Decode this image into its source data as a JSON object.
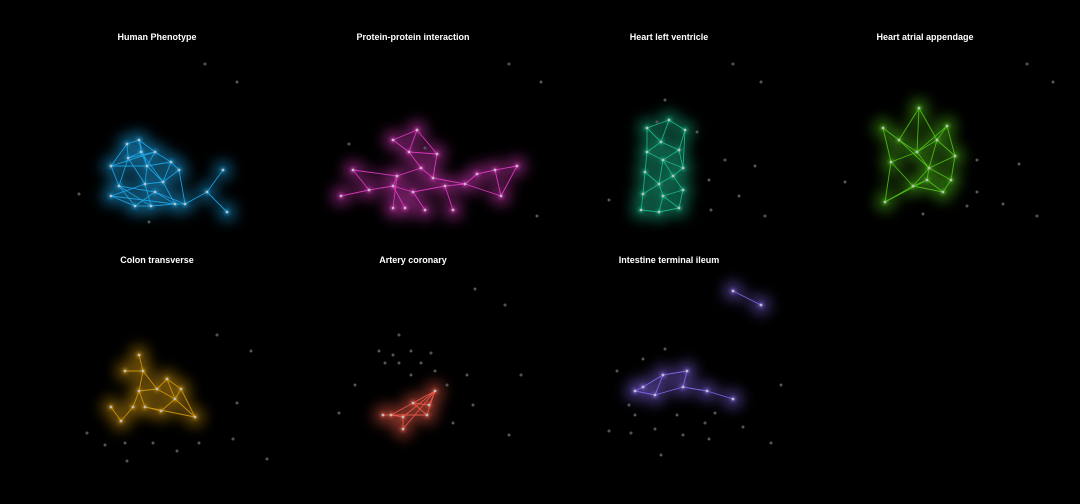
{
  "figure": {
    "background": "#000000",
    "node_color_inactive": "#555555"
  },
  "panels": [
    {
      "title": "Human Phenotype",
      "color": "#1fa6e8",
      "active_nodes": [
        [
          -0.75,
          0.65
        ],
        [
          -0.45,
          0.75
        ],
        [
          -0.4,
          0.45
        ],
        [
          -0.72,
          0.3
        ],
        [
          -0.05,
          0.45
        ],
        [
          -1.15,
          0.1
        ],
        [
          -0.25,
          0.1
        ],
        [
          0.35,
          0.2
        ],
        [
          0.55,
          0.0
        ],
        [
          0.15,
          -0.3
        ],
        [
          -0.3,
          -0.35
        ],
        [
          -1.15,
          -0.65
        ],
        [
          0.45,
          -0.85
        ],
        [
          -0.15,
          -0.9
        ],
        [
          -0.55,
          -0.9
        ],
        [
          -0.95,
          -0.4
        ],
        [
          -0.05,
          -0.55
        ],
        [
          0.7,
          -0.85
        ],
        [
          1.25,
          -0.55
        ],
        [
          1.65,
          0.0
        ],
        [
          1.75,
          -1.05
        ]
      ],
      "active_edges": [
        [
          0,
          1
        ],
        [
          1,
          2
        ],
        [
          2,
          3
        ],
        [
          3,
          4
        ],
        [
          4,
          5
        ],
        [
          5,
          6
        ],
        [
          6,
          7
        ],
        [
          7,
          8
        ],
        [
          8,
          9
        ],
        [
          9,
          10
        ],
        [
          10,
          11
        ],
        [
          11,
          12
        ],
        [
          12,
          13
        ],
        [
          13,
          14
        ],
        [
          14,
          15
        ],
        [
          15,
          16
        ],
        [
          16,
          17
        ],
        [
          0,
          3
        ],
        [
          0,
          5
        ],
        [
          1,
          4
        ],
        [
          2,
          6
        ],
        [
          4,
          6
        ],
        [
          4,
          7
        ],
        [
          6,
          9
        ],
        [
          6,
          10
        ],
        [
          7,
          9
        ],
        [
          9,
          12
        ],
        [
          10,
          13
        ],
        [
          11,
          14
        ],
        [
          14,
          16
        ],
        [
          16,
          12
        ],
        [
          5,
          15
        ],
        [
          3,
          10
        ],
        [
          2,
          9
        ],
        [
          15,
          13
        ],
        [
          8,
          17
        ],
        [
          12,
          17
        ],
        [
          17,
          18
        ],
        [
          18,
          19
        ],
        [
          18,
          20
        ],
        [
          1,
          6
        ],
        [
          3,
          15
        ]
      ],
      "inactive_nodes": [
        [
          1.2,
          2.65
        ],
        [
          2.0,
          2.2
        ],
        [
          -1.95,
          -0.6
        ],
        [
          -0.2,
          -1.3
        ]
      ]
    },
    {
      "title": "Protein-protein interaction",
      "color": "#e63cc8",
      "active_nodes": [
        [
          0.1,
          1.0
        ],
        [
          -0.5,
          0.75
        ],
        [
          -0.1,
          0.45
        ],
        [
          0.6,
          0.4
        ],
        [
          -0.4,
          -0.15
        ],
        [
          0.2,
          0.05
        ],
        [
          0.5,
          -0.2
        ],
        [
          -1.5,
          0.0
        ],
        [
          -1.1,
          -0.5
        ],
        [
          -0.5,
          -0.4
        ],
        [
          0.0,
          -0.55
        ],
        [
          0.8,
          -0.4
        ],
        [
          1.3,
          -0.35
        ],
        [
          1.6,
          -0.1
        ],
        [
          2.05,
          0.0
        ],
        [
          2.6,
          0.1
        ],
        [
          2.2,
          -0.65
        ],
        [
          1.0,
          -1.0
        ],
        [
          -1.8,
          -0.65
        ],
        [
          0.3,
          -1.0
        ],
        [
          -0.2,
          -0.95
        ],
        [
          -0.5,
          -0.95
        ]
      ],
      "active_edges": [
        [
          0,
          1
        ],
        [
          0,
          2
        ],
        [
          1,
          2
        ],
        [
          0,
          3
        ],
        [
          2,
          3
        ],
        [
          2,
          5
        ],
        [
          4,
          5
        ],
        [
          5,
          6
        ],
        [
          7,
          8
        ],
        [
          8,
          9
        ],
        [
          9,
          10
        ],
        [
          10,
          11
        ],
        [
          11,
          12
        ],
        [
          12,
          13
        ],
        [
          13,
          14
        ],
        [
          14,
          15
        ],
        [
          15,
          16
        ],
        [
          14,
          16
        ],
        [
          12,
          16
        ],
        [
          17,
          11
        ],
        [
          18,
          8
        ],
        [
          19,
          10
        ],
        [
          20,
          9
        ],
        [
          21,
          4
        ],
        [
          7,
          4
        ],
        [
          6,
          12
        ],
        [
          4,
          9
        ],
        [
          3,
          6
        ]
      ],
      "inactive_nodes": [
        [
          2.4,
          2.65
        ],
        [
          3.2,
          2.2
        ],
        [
          3.1,
          -1.15
        ],
        [
          -1.6,
          0.65
        ],
        [
          0.3,
          0.55
        ]
      ]
    },
    {
      "title": "Heart left ventricle",
      "color": "#1bbd8e",
      "active_nodes": [
        [
          -0.55,
          1.05
        ],
        [
          0.0,
          1.25
        ],
        [
          0.4,
          1.0
        ],
        [
          -0.2,
          0.7
        ],
        [
          0.25,
          0.5
        ],
        [
          -0.55,
          0.45
        ],
        [
          -0.15,
          0.25
        ],
        [
          0.35,
          0.05
        ],
        [
          -0.6,
          -0.05
        ],
        [
          0.1,
          -0.15
        ],
        [
          -0.25,
          -0.35
        ],
        [
          0.35,
          -0.5
        ],
        [
          -0.65,
          -0.6
        ],
        [
          -0.15,
          -0.65
        ],
        [
          0.25,
          -0.95
        ],
        [
          -0.7,
          -1.0
        ],
        [
          -0.25,
          -1.05
        ]
      ],
      "active_edges": [
        [
          0,
          1
        ],
        [
          1,
          2
        ],
        [
          0,
          3
        ],
        [
          1,
          3
        ],
        [
          2,
          4
        ],
        [
          3,
          4
        ],
        [
          3,
          5
        ],
        [
          4,
          6
        ],
        [
          5,
          6
        ],
        [
          6,
          7
        ],
        [
          5,
          8
        ],
        [
          6,
          9
        ],
        [
          7,
          9
        ],
        [
          8,
          10
        ],
        [
          9,
          10
        ],
        [
          9,
          11
        ],
        [
          10,
          12
        ],
        [
          10,
          13
        ],
        [
          11,
          13
        ],
        [
          12,
          15
        ],
        [
          13,
          14
        ],
        [
          13,
          16
        ],
        [
          15,
          16
        ],
        [
          14,
          16
        ],
        [
          4,
          7
        ],
        [
          2,
          7
        ],
        [
          8,
          12
        ],
        [
          0,
          5
        ],
        [
          11,
          14
        ],
        [
          6,
          10
        ]
      ],
      "inactive_nodes": [
        [
          -0.1,
          1.75
        ],
        [
          1.4,
          0.25
        ],
        [
          2.15,
          0.1
        ],
        [
          1.0,
          -0.25
        ],
        [
          1.75,
          -0.65
        ],
        [
          1.05,
          -1.0
        ],
        [
          -1.5,
          -0.75
        ],
        [
          2.4,
          -1.15
        ],
        [
          -0.3,
          1.2
        ],
        [
          0.7,
          0.95
        ],
        [
          1.6,
          2.65
        ],
        [
          2.3,
          2.2
        ]
      ]
    },
    {
      "title": "Heart atrial appendage",
      "color": "#52c41a",
      "active_nodes": [
        [
          -1.05,
          1.05
        ],
        [
          -0.15,
          1.55
        ],
        [
          0.55,
          1.1
        ],
        [
          -0.65,
          0.75
        ],
        [
          0.3,
          0.75
        ],
        [
          -0.2,
          0.45
        ],
        [
          0.75,
          0.35
        ],
        [
          -0.85,
          0.2
        ],
        [
          0.1,
          0.05
        ],
        [
          0.65,
          -0.25
        ],
        [
          -0.3,
          -0.4
        ],
        [
          -1.0,
          -0.8
        ],
        [
          0.45,
          -0.55
        ],
        [
          0.05,
          -0.25
        ]
      ],
      "active_edges": [
        [
          0,
          3
        ],
        [
          1,
          3
        ],
        [
          1,
          4
        ],
        [
          2,
          4
        ],
        [
          3,
          5
        ],
        [
          4,
          5
        ],
        [
          4,
          6
        ],
        [
          5,
          7
        ],
        [
          5,
          8
        ],
        [
          6,
          8
        ],
        [
          7,
          10
        ],
        [
          8,
          10
        ],
        [
          8,
          9
        ],
        [
          9,
          12
        ],
        [
          10,
          11
        ],
        [
          10,
          13
        ],
        [
          12,
          13
        ],
        [
          2,
          6
        ],
        [
          0,
          7
        ],
        [
          11,
          7
        ],
        [
          6,
          9
        ],
        [
          3,
          8
        ],
        [
          1,
          5
        ],
        [
          4,
          8
        ],
        [
          13,
          8
        ],
        [
          11,
          13
        ],
        [
          12,
          10
        ],
        [
          2,
          5
        ]
      ],
      "inactive_nodes": [
        [
          1.3,
          0.25
        ],
        [
          2.35,
          0.15
        ],
        [
          1.3,
          -0.55
        ],
        [
          1.95,
          -0.85
        ],
        [
          1.05,
          -0.9
        ],
        [
          -2.0,
          -0.3
        ],
        [
          -0.05,
          -1.1
        ],
        [
          2.8,
          -1.15
        ],
        [
          2.55,
          2.65
        ],
        [
          3.2,
          2.2
        ]
      ]
    },
    {
      "title": "Colon transverse",
      "color": "#d49a0e",
      "active_nodes": [
        [
          -0.35,
          0.55
        ],
        [
          -0.45,
          0.05
        ],
        [
          -0.3,
          -0.35
        ],
        [
          -0.6,
          -0.35
        ],
        [
          0.0,
          0.1
        ],
        [
          0.25,
          0.35
        ],
        [
          0.6,
          0.1
        ],
        [
          0.45,
          -0.15
        ],
        [
          0.1,
          -0.45
        ],
        [
          -0.8,
          0.55
        ],
        [
          -0.45,
          0.95
        ],
        [
          0.95,
          -0.6
        ],
        [
          -0.9,
          -0.7
        ],
        [
          -1.15,
          -0.35
        ]
      ],
      "active_edges": [
        [
          0,
          1
        ],
        [
          1,
          2
        ],
        [
          1,
          3
        ],
        [
          0,
          4
        ],
        [
          4,
          5
        ],
        [
          5,
          6
        ],
        [
          6,
          7
        ],
        [
          4,
          7
        ],
        [
          7,
          8
        ],
        [
          8,
          2
        ],
        [
          3,
          12
        ],
        [
          12,
          13
        ],
        [
          0,
          9
        ],
        [
          0,
          10
        ],
        [
          7,
          11
        ],
        [
          6,
          11
        ],
        [
          2,
          11
        ],
        [
          1,
          4
        ],
        [
          5,
          7
        ]
      ],
      "inactive_nodes": [
        [
          -1.75,
          -1.0
        ],
        [
          -1.3,
          -1.3
        ],
        [
          -0.8,
          -1.25
        ],
        [
          -0.1,
          -1.25
        ],
        [
          0.5,
          -1.45
        ],
        [
          1.05,
          -1.25
        ],
        [
          -0.75,
          -1.7
        ],
        [
          2.0,
          -0.25
        ],
        [
          1.9,
          -1.15
        ],
        [
          2.75,
          -1.65
        ],
        [
          1.5,
          1.45
        ],
        [
          2.35,
          1.05
        ]
      ]
    },
    {
      "title": "Artery coronary",
      "color": "#ef5b4a",
      "active_nodes": [
        [
          0.55,
          0.05
        ],
        [
          0.0,
          -0.25
        ],
        [
          -0.55,
          -0.55
        ],
        [
          0.35,
          -0.55
        ],
        [
          -0.75,
          -0.55
        ],
        [
          -0.25,
          -0.6
        ],
        [
          0.4,
          -0.3
        ],
        [
          -0.25,
          -0.9
        ]
      ],
      "active_edges": [
        [
          0,
          1
        ],
        [
          1,
          2
        ],
        [
          0,
          3
        ],
        [
          3,
          2
        ],
        [
          2,
          4
        ],
        [
          0,
          5
        ],
        [
          1,
          6
        ],
        [
          6,
          0
        ],
        [
          7,
          0
        ],
        [
          7,
          5
        ],
        [
          5,
          2
        ],
        [
          1,
          3
        ]
      ],
      "inactive_nodes": [
        [
          -0.35,
          1.45
        ],
        [
          -0.85,
          1.05
        ],
        [
          -0.5,
          0.95
        ],
        [
          -0.05,
          1.05
        ],
        [
          0.45,
          1.0
        ],
        [
          -0.7,
          0.75
        ],
        [
          -0.35,
          0.75
        ],
        [
          0.2,
          0.75
        ],
        [
          0.55,
          0.55
        ],
        [
          -1.45,
          0.2
        ],
        [
          -0.05,
          0.45
        ],
        [
          0.85,
          0.2
        ],
        [
          1.35,
          0.45
        ],
        [
          1.5,
          -0.3
        ],
        [
          1.0,
          -0.75
        ],
        [
          2.7,
          0.45
        ],
        [
          2.4,
          -1.05
        ],
        [
          -1.85,
          -0.5
        ],
        [
          1.55,
          2.6
        ],
        [
          2.3,
          2.2
        ]
      ]
    },
    {
      "title": "Intestine terminal ileum",
      "color": "#8b6cf5",
      "active_nodes": [
        [
          0.45,
          0.55
        ],
        [
          -0.15,
          0.45
        ],
        [
          -0.65,
          0.15
        ],
        [
          0.35,
          0.15
        ],
        [
          0.95,
          0.05
        ],
        [
          -0.35,
          -0.05
        ],
        [
          -0.85,
          0.05
        ],
        [
          1.6,
          -0.15
        ],
        [
          1.6,
          2.55
        ],
        [
          2.3,
          2.2
        ]
      ],
      "active_edges": [
        [
          0,
          1
        ],
        [
          1,
          2
        ],
        [
          0,
          3
        ],
        [
          3,
          4
        ],
        [
          1,
          5
        ],
        [
          5,
          6
        ],
        [
          2,
          6
        ],
        [
          4,
          7
        ],
        [
          3,
          5
        ],
        [
          8,
          9
        ]
      ],
      "inactive_nodes": [
        [
          -0.1,
          1.1
        ],
        [
          -0.65,
          0.85
        ],
        [
          1.15,
          -0.5
        ],
        [
          0.9,
          -0.75
        ],
        [
          1.85,
          -0.85
        ],
        [
          -0.85,
          -0.55
        ],
        [
          0.2,
          -0.55
        ],
        [
          -0.35,
          -0.9
        ],
        [
          0.35,
          -1.05
        ],
        [
          1.0,
          -1.15
        ],
        [
          -0.95,
          -1.0
        ],
        [
          -1.5,
          -0.95
        ],
        [
          -1.0,
          -0.3
        ],
        [
          2.8,
          0.2
        ],
        [
          2.55,
          -1.25
        ],
        [
          -0.2,
          -1.55
        ],
        [
          -1.3,
          0.55
        ]
      ]
    }
  ]
}
